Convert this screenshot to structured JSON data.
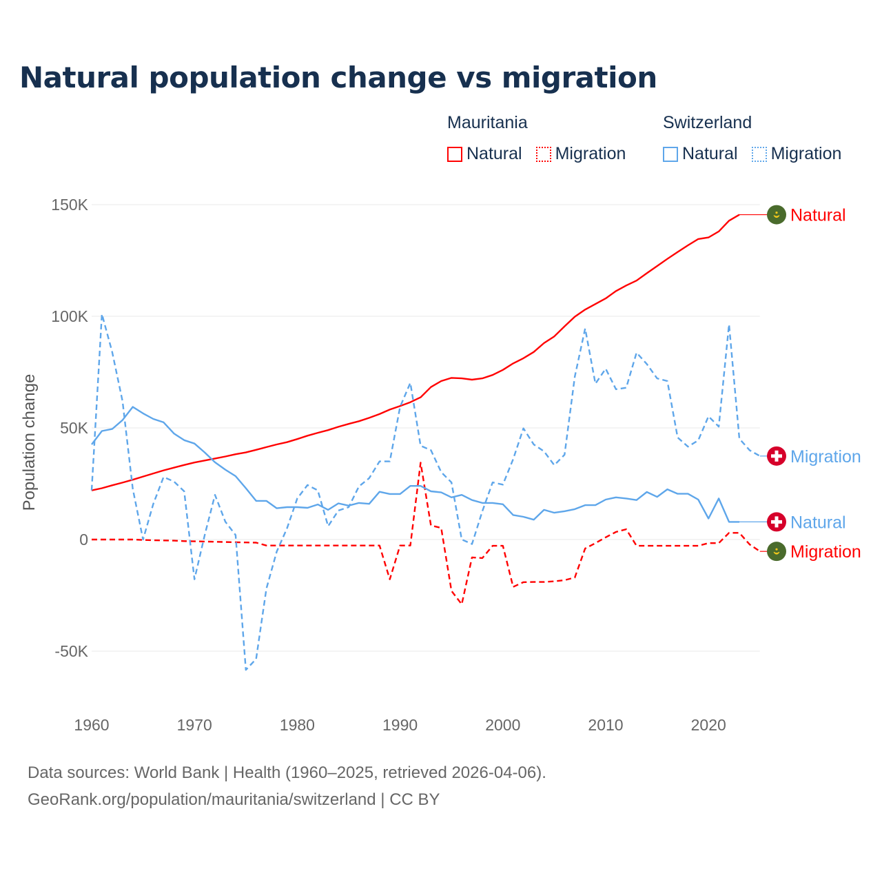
{
  "chart_data": {
    "type": "line",
    "title": "Natural population change vs migration",
    "xlabel": "",
    "ylabel": "Population change",
    "xlim": [
      1960,
      2025
    ],
    "ylim": [
      -62000,
      152000
    ],
    "yticks": [
      {
        "value": -50000,
        "label": "-50K"
      },
      {
        "value": 0,
        "label": "0"
      },
      {
        "value": 50000,
        "label": "50K"
      },
      {
        "value": 100000,
        "label": "100K"
      },
      {
        "value": 150000,
        "label": "150K"
      }
    ],
    "xticks": [
      {
        "value": 1960,
        "label": "1960"
      },
      {
        "value": 1970,
        "label": "1970"
      },
      {
        "value": 1980,
        "label": "1980"
      },
      {
        "value": 1990,
        "label": "1990"
      },
      {
        "value": 2000,
        "label": "2000"
      },
      {
        "value": 2010,
        "label": "2010"
      },
      {
        "value": 2020,
        "label": "2020"
      }
    ],
    "grid": true,
    "legend_placement": "top-right",
    "x_start": 1960,
    "series": [
      {
        "id": "mr-natural",
        "country": "Mauritania",
        "name": "Natural",
        "color": "#ff0000",
        "style": "solid",
        "flag": "mauritania-flag-icon",
        "values_k": [
          22,
          23,
          24.3,
          25.5,
          26.8,
          28.2,
          29.6,
          31,
          32.2,
          33.4,
          34.5,
          35.4,
          36.3,
          37.2,
          38.2,
          39,
          40.2,
          41.4,
          42.6,
          43.6,
          45,
          46.5,
          47.8,
          49,
          50.5,
          51.8,
          53,
          54.5,
          56.2,
          58.2,
          59.8,
          61.5,
          63.7,
          68.3,
          71,
          72.4,
          72.2,
          71.6,
          72.2,
          73.7,
          76,
          78.9,
          81.2,
          84,
          88,
          91,
          95.5,
          99.8,
          103,
          105.5,
          108,
          111.3,
          113.8,
          116,
          119.3,
          122.5,
          125.7,
          128.8,
          131.8,
          134.6,
          135.3,
          138,
          142.8,
          145.5,
          null,
          null
        ]
      },
      {
        "id": "mr-migration",
        "country": "Mauritania",
        "name": "Migration",
        "color": "#ff0000",
        "style": "dashed",
        "flag": "mauritania-flag-icon",
        "values_k": [
          0,
          0,
          0,
          0,
          0,
          -0.2,
          -0.3,
          -0.4,
          -0.5,
          -0.7,
          -0.8,
          -0.9,
          -1,
          -1.1,
          -1.2,
          -1.3,
          -1.4,
          -2.7,
          -2.7,
          -2.7,
          -2.7,
          -2.7,
          -2.7,
          -2.7,
          -2.7,
          -2.7,
          -2.7,
          -2.7,
          -2.7,
          -17.8,
          -2.7,
          -2.7,
          34.4,
          6.3,
          5.2,
          -23,
          -29,
          -8,
          -8.3,
          -2.8,
          -2.8,
          -21.2,
          -19.1,
          -19,
          -19,
          -18.7,
          -18.2,
          -17,
          -4,
          -1.6,
          1,
          3.4,
          4.6,
          -2.8,
          -2.8,
          -2.8,
          -2.8,
          -2.8,
          -2.8,
          -2.8,
          -1.6,
          -1.6,
          3,
          3,
          -2.2,
          -5.3
        ]
      },
      {
        "id": "ch-natural",
        "country": "Switzerland",
        "name": "Natural",
        "color": "#5ea6ea",
        "style": "solid",
        "flag": "switzerland-flag-icon",
        "values_k": [
          42.6,
          48.6,
          49.5,
          53.5,
          59.4,
          56.5,
          54,
          52.5,
          47.5,
          44.5,
          43,
          39,
          34.6,
          31.3,
          28.4,
          23,
          17.3,
          17.3,
          14,
          14.5,
          14.5,
          14.2,
          15.7,
          13.3,
          16.2,
          15.2,
          16.4,
          16,
          21.4,
          20.4,
          20.4,
          24,
          24,
          21.6,
          21.1,
          18.9,
          20,
          17.7,
          16.4,
          16.4,
          15.8,
          11,
          10.2,
          8.9,
          13.3,
          12,
          12.7,
          13.6,
          15.4,
          15.4,
          17.9,
          18.9,
          18.4,
          17.7,
          21.3,
          19.1,
          22.5,
          20.5,
          20.5,
          17.9,
          9.4,
          18.4,
          7.9,
          7.9,
          null,
          null
        ]
      },
      {
        "id": "ch-migration",
        "country": "Switzerland",
        "name": "Migration",
        "color": "#5ea6ea",
        "style": "dashed",
        "flag": "switzerland-flag-icon",
        "values_k": [
          22,
          101,
          84,
          62,
          22.7,
          0,
          16,
          28,
          26,
          21.6,
          -17.8,
          2,
          20,
          8,
          2,
          -58.4,
          -53.5,
          -22,
          -5.4,
          5,
          18.4,
          24.4,
          22,
          6,
          13,
          14.5,
          23.8,
          27.5,
          35,
          35,
          59.4,
          70.2,
          42,
          40,
          30.2,
          25.6,
          0,
          -2,
          12.7,
          25.6,
          24.6,
          36,
          49.8,
          42.6,
          39.5,
          33.3,
          38,
          73,
          94.5,
          69.8,
          76.5,
          67.3,
          68,
          83.7,
          78.6,
          72.2,
          71,
          45.7,
          41.6,
          44.4,
          55.2,
          50.6,
          96.4,
          45.2,
          40,
          37.4
        ]
      }
    ]
  },
  "legend": {
    "groups": [
      {
        "name": "Mauritania",
        "items": [
          {
            "label": "Natural",
            "color": "#ff0000",
            "style": "solid"
          },
          {
            "label": "Migration",
            "color": "#ff0000",
            "style": "dotted"
          }
        ]
      },
      {
        "name": "Switzerland",
        "items": [
          {
            "label": "Natural",
            "color": "#5ea6ea",
            "style": "solid"
          },
          {
            "label": "Migration",
            "color": "#5ea6ea",
            "style": "dotted"
          }
        ]
      }
    ]
  },
  "footer": {
    "line1": "Data sources: World Bank | Health (1960–2025, retrieved 2026-04-06).",
    "line2": "GeoRank.org/population/mauritania/switzerland | CC BY"
  }
}
